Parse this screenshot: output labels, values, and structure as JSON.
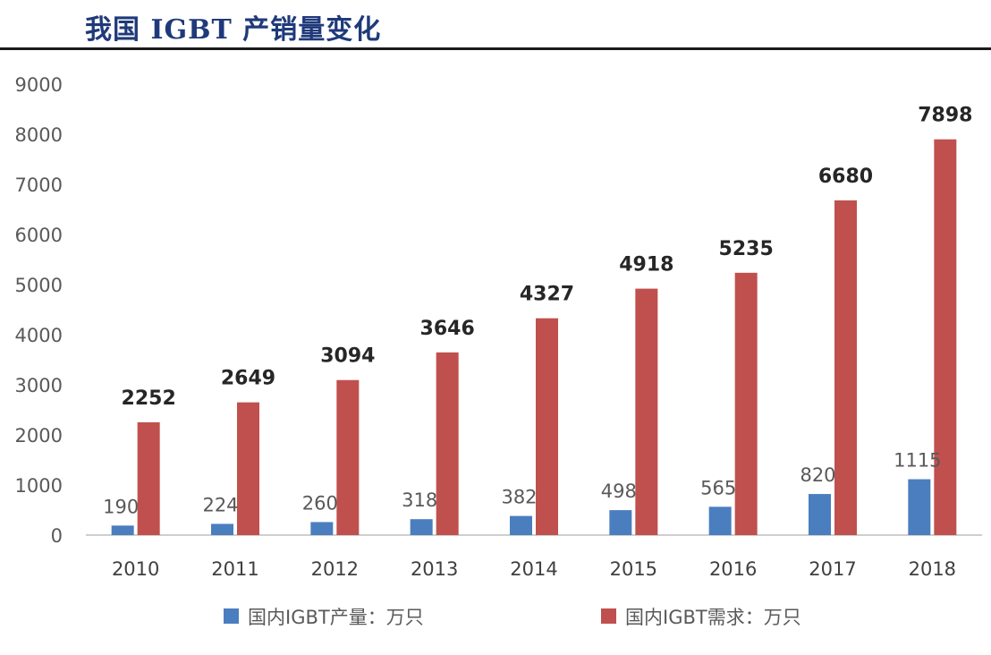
{
  "header": {
    "title": "我国 IGBT 产销量变化"
  },
  "chart_data": {
    "type": "bar",
    "categories": [
      "2010",
      "2011",
      "2012",
      "2013",
      "2014",
      "2015",
      "2016",
      "2017",
      "2018"
    ],
    "series": [
      {
        "name": "国内IGBT产量：万只",
        "color": "#4a7ebf",
        "values": [
          190,
          224,
          260,
          318,
          382,
          498,
          565,
          820,
          1115
        ]
      },
      {
        "name": "国内IGBT需求：万只",
        "color": "#c0504d",
        "values": [
          2252,
          2649,
          3094,
          3646,
          4327,
          4918,
          5235,
          6680,
          7898
        ]
      }
    ],
    "yticks": [
      "0",
      "1000",
      "2000",
      "3000",
      "4000",
      "5000",
      "6000",
      "7000",
      "8000",
      "9000"
    ],
    "ylim": [
      0,
      9000
    ],
    "grid": false,
    "legend_position": "bottom"
  }
}
